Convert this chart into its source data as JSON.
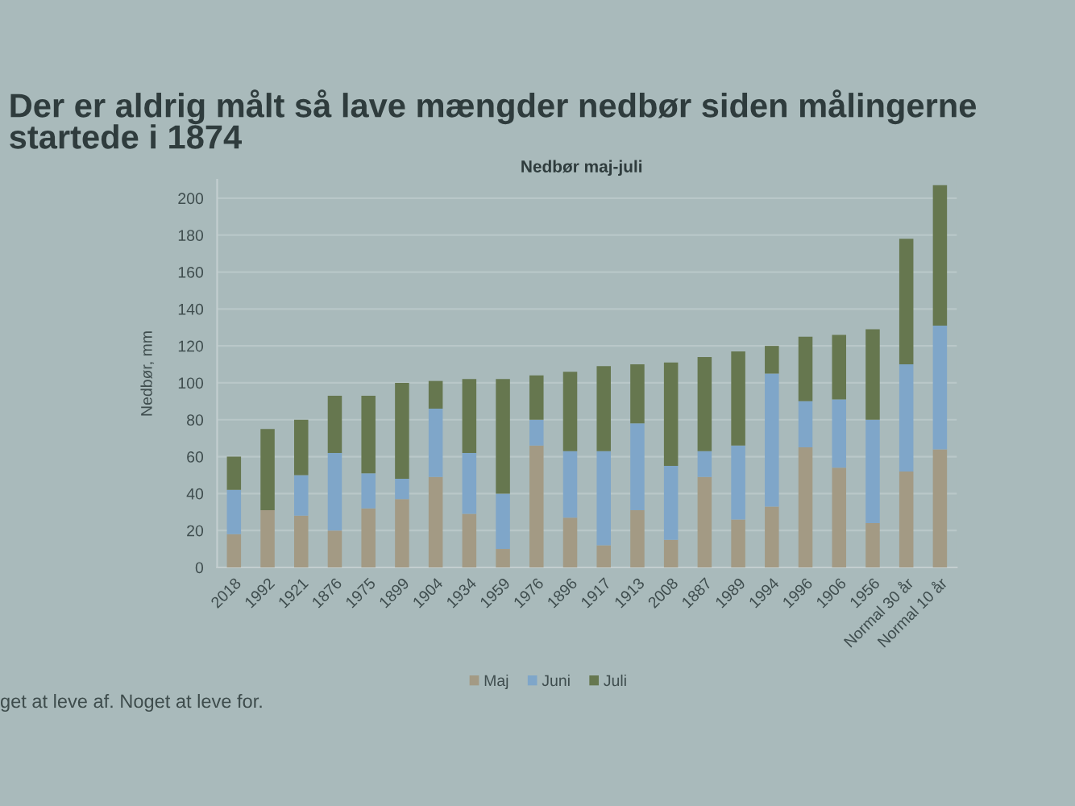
{
  "chart_data": {
    "type": "bar",
    "title": "Der er aldrig målt så lave mængder nedbør siden målingerne startede i 1874",
    "subtitle": "Nedbør maj-juli",
    "ylabel": "Nedbør, mm",
    "categories": [
      "2018",
      "1992",
      "1921",
      "1876",
      "1975",
      "1899",
      "1904",
      "1934",
      "1959",
      "1976",
      "1896",
      "1917",
      "1913",
      "2008",
      "1887",
      "1989",
      "1994",
      "1996",
      "1906",
      "1956",
      "Normal 30 år",
      "Normal 10 år"
    ],
    "stacked": true,
    "series": [
      {
        "name": "Maj",
        "color": "#a39a84",
        "values": [
          18,
          31,
          28,
          20,
          32,
          37,
          49,
          29,
          10,
          66,
          27,
          12,
          31,
          15,
          49,
          26,
          33,
          65,
          54,
          24,
          52,
          64
        ]
      },
      {
        "name": "Juni",
        "color": "#7fa6c9",
        "values": [
          24,
          0,
          22,
          42,
          19,
          11,
          37,
          33,
          30,
          14,
          36,
          51,
          47,
          40,
          14,
          40,
          72,
          25,
          37,
          56,
          58,
          67
        ]
      },
      {
        "name": "Juli",
        "color": "#66774f",
        "values": [
          18,
          44,
          30,
          31,
          42,
          52,
          15,
          40,
          62,
          24,
          43,
          46,
          32,
          56,
          51,
          51,
          15,
          35,
          35,
          49,
          68,
          76
        ]
      }
    ],
    "ylim": [
      0,
      210
    ],
    "yticks": [
      0,
      20,
      40,
      60,
      80,
      100,
      120,
      140,
      160,
      180,
      200
    ],
    "grid": "y",
    "legend": "bottom",
    "annotations": [
      "get at leve af. Noget at leve for."
    ]
  }
}
